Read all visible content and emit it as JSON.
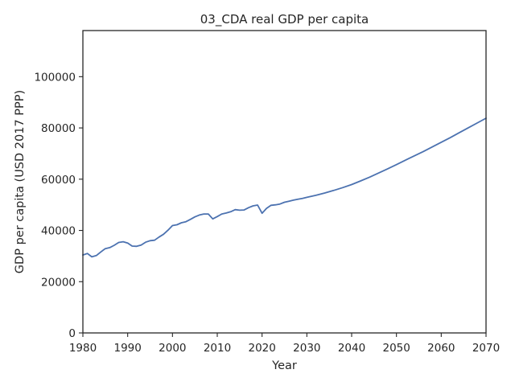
{
  "chart_data": {
    "type": "line",
    "title": "03_CDA real GDP per capita",
    "xlabel": "Year",
    "ylabel": "GDP per capita (USD 2017 PPP)",
    "xlim": [
      1980,
      2070
    ],
    "ylim": [
      0,
      118000
    ],
    "xticks": [
      1980,
      1990,
      2000,
      2010,
      2020,
      2030,
      2040,
      2050,
      2060,
      2070
    ],
    "yticks": [
      0,
      20000,
      40000,
      60000,
      80000,
      100000
    ],
    "xtick_labels": [
      "1980",
      "1990",
      "2000",
      "2010",
      "2020",
      "2030",
      "2040",
      "2050",
      "2060",
      "2070"
    ],
    "ytick_labels": [
      "0",
      "20000",
      "40000",
      "60000",
      "80000",
      "100000"
    ],
    "grid": false,
    "legend": "none",
    "colors": {
      "line": "#4c72b0",
      "axes": "#262626"
    },
    "series": [
      {
        "x": [
          1980,
          1981,
          1982,
          1983,
          1984,
          1985,
          1986,
          1987,
          1988,
          1989,
          1990,
          1991,
          1992,
          1993,
          1994,
          1995,
          1996,
          1997,
          1998,
          1999,
          2000,
          2001,
          2002,
          2003,
          2004,
          2005,
          2006,
          2007,
          2008,
          2009,
          2010,
          2011,
          2012,
          2013,
          2014,
          2015,
          2016,
          2017,
          2018,
          2019,
          2020,
          2021,
          2022,
          2023,
          2024,
          2025,
          2026,
          2027,
          2028,
          2029,
          2030,
          2032,
          2034,
          2036,
          2038,
          2040,
          2042,
          2044,
          2046,
          2048,
          2050,
          2052,
          2054,
          2056,
          2058,
          2060,
          2062,
          2064,
          2066,
          2068,
          2070
        ],
        "y": [
          30400,
          31000,
          29700,
          30200,
          31600,
          32900,
          33300,
          34200,
          35300,
          35600,
          35100,
          33900,
          33800,
          34300,
          35400,
          36000,
          36200,
          37400,
          38500,
          40100,
          41900,
          42200,
          43000,
          43400,
          44300,
          45300,
          46000,
          46400,
          46400,
          44500,
          45400,
          46400,
          46800,
          47300,
          48100,
          47900,
          48000,
          48900,
          49600,
          49900,
          46700,
          48600,
          49800,
          50000,
          50300,
          51000,
          51400,
          51800,
          52200,
          52500,
          52900,
          53700,
          54600,
          55600,
          56700,
          57900,
          59300,
          60800,
          62400,
          64000,
          65700,
          67400,
          69100,
          70800,
          72600,
          74400,
          76200,
          78100,
          80000,
          81900,
          83800
        ]
      }
    ]
  }
}
